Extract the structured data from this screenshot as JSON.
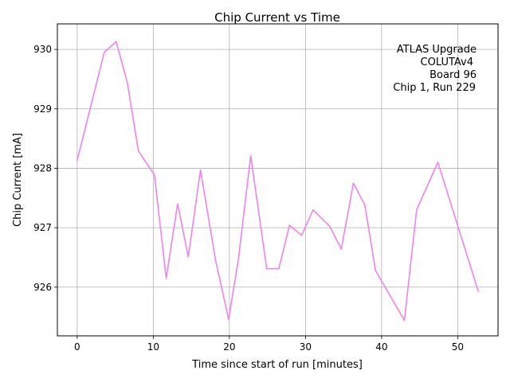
{
  "chart_data": {
    "type": "line",
    "title": "Chip Current vs Time",
    "xlabel": "Time since start of run [minutes]",
    "ylabel": "Chip Current [mA]",
    "xlim": [
      -2.6,
      55.3
    ],
    "ylim": [
      925.18,
      930.43
    ],
    "xticks": [
      0,
      10,
      20,
      30,
      40,
      50
    ],
    "yticks": [
      926,
      927,
      928,
      929,
      930
    ],
    "grid": true,
    "line_color": "#ee82ee",
    "annotation": [
      "ATLAS Upgrade",
      "COLUTAv4",
      "Board 96",
      "Chip 1, Run 229"
    ],
    "annotation_placement": "top-right",
    "series": [
      {
        "name": "Chip Current",
        "x": [
          0,
          3.56,
          5.13,
          6.59,
          8.05,
          10.15,
          11.7,
          13.2,
          14.6,
          16.2,
          18.2,
          19.9,
          21.2,
          22.8,
          24.9,
          26.5,
          27.9,
          29.5,
          31.0,
          33.2,
          34.7,
          36.3,
          37.8,
          39.2,
          43.0,
          44.6,
          47.4,
          52.7
        ],
        "y": [
          928.13,
          929.95,
          930.13,
          929.44,
          928.29,
          927.89,
          926.15,
          927.4,
          926.51,
          927.97,
          926.44,
          925.46,
          926.48,
          928.21,
          926.31,
          926.31,
          927.04,
          926.87,
          927.3,
          927.02,
          926.64,
          927.75,
          927.38,
          926.28,
          925.44,
          927.3,
          928.1,
          925.93
        ]
      }
    ]
  }
}
